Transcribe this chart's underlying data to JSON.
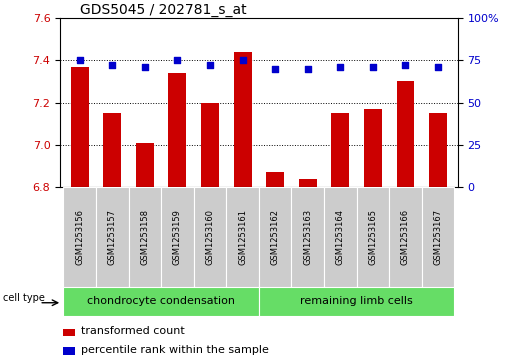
{
  "title": "GDS5045 / 202781_s_at",
  "samples": [
    "GSM1253156",
    "GSM1253157",
    "GSM1253158",
    "GSM1253159",
    "GSM1253160",
    "GSM1253161",
    "GSM1253162",
    "GSM1253163",
    "GSM1253164",
    "GSM1253165",
    "GSM1253166",
    "GSM1253167"
  ],
  "transformed_count": [
    7.37,
    7.15,
    7.01,
    7.34,
    7.2,
    7.44,
    6.87,
    6.84,
    7.15,
    7.17,
    7.3,
    7.15
  ],
  "percentile_rank": [
    75,
    72,
    71,
    75,
    72,
    75,
    70,
    70,
    71,
    71,
    72,
    71
  ],
  "ylim_left": [
    6.8,
    7.6
  ],
  "ylim_right": [
    0,
    100
  ],
  "yticks_left": [
    6.8,
    7.0,
    7.2,
    7.4,
    7.6
  ],
  "yticks_right": [
    0,
    25,
    50,
    75,
    100
  ],
  "bar_color": "#cc0000",
  "dot_color": "#0000cc",
  "grid_color": "#000000",
  "bg_color_plot": "#ffffff",
  "sample_box_color": "#cccccc",
  "group1_label": "chondrocyte condensation",
  "group2_label": "remaining limb cells",
  "group1_count": 6,
  "group2_count": 6,
  "cell_type_label": "cell type",
  "legend_bar_label": "transformed count",
  "legend_dot_label": "percentile rank within the sample",
  "group_bg_color": "#66dd66",
  "title_fontsize": 10,
  "tick_fontsize": 8,
  "sample_fontsize": 6,
  "group_fontsize": 8,
  "legend_fontsize": 8
}
